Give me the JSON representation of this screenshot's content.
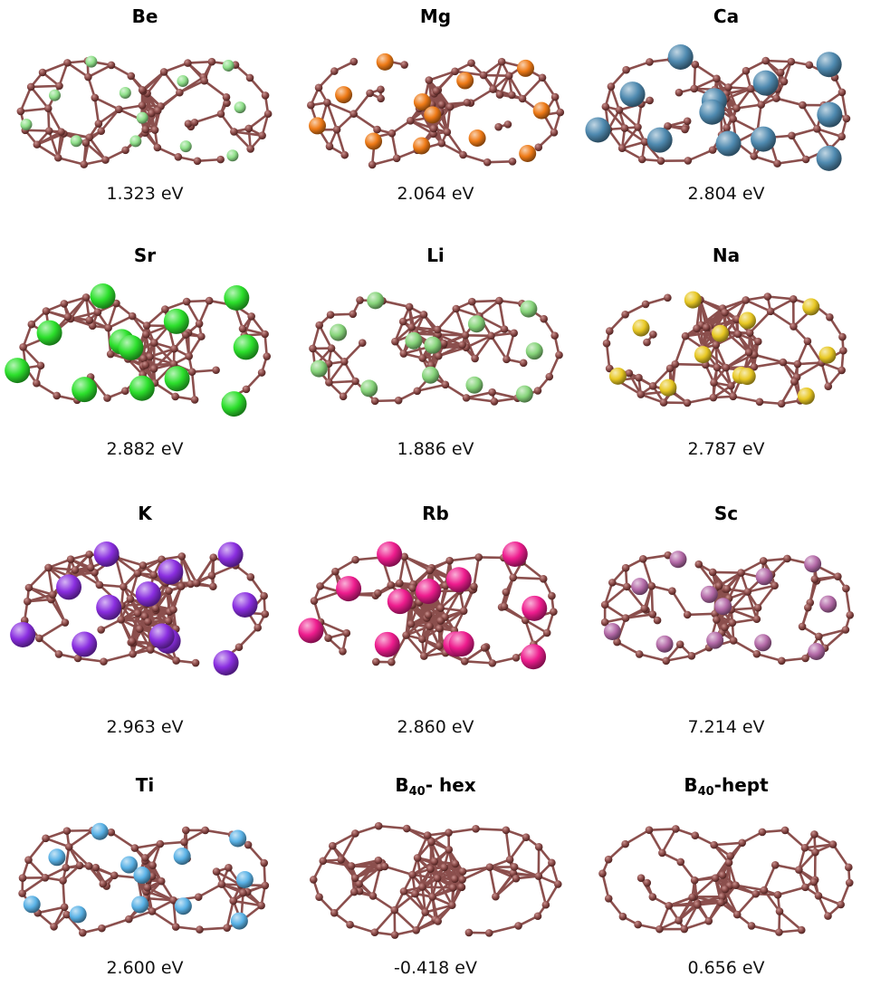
{
  "colors": {
    "boron_atom": "#8a4a48",
    "boron_atom_dark": "#4f2321",
    "boron_bond": "#8b4f4d"
  },
  "panels": [
    {
      "title": "Be",
      "energy": "1.323 eV",
      "dopant_color": "#8fe08a",
      "dopant_size": "small",
      "cage": "hept"
    },
    {
      "title": "Mg",
      "energy": "2.064 eV",
      "dopant_color": "#ee7a16",
      "dopant_size": "medium",
      "cage": "hept"
    },
    {
      "title": "Ca",
      "energy": "2.804 eV",
      "dopant_color": "#4f8ab0",
      "dopant_size": "large",
      "cage": "hept"
    },
    {
      "title": "Sr",
      "energy": "2.882 eV",
      "dopant_color": "#2ce02c",
      "dopant_size": "large",
      "cage": "hept"
    },
    {
      "title": "Li",
      "energy": "1.886 eV",
      "dopant_color": "#86d47a",
      "dopant_size": "medium",
      "cage": "hept"
    },
    {
      "title": "Na",
      "energy": "2.787 eV",
      "dopant_color": "#e8c823",
      "dopant_size": "medium",
      "cage": "hex"
    },
    {
      "title": "K",
      "energy": "2.963 eV",
      "dopant_color": "#8a2ee0",
      "dopant_size": "large",
      "cage": "hex"
    },
    {
      "title": "Rb",
      "energy": "2.860 eV",
      "dopant_color": "#ee1c8e",
      "dopant_size": "large",
      "cage": "hex"
    },
    {
      "title": "Sc",
      "energy": "7.214 eV",
      "dopant_color": "#b46aa8",
      "dopant_size": "medium",
      "cage": "hept"
    },
    {
      "title": "Ti",
      "energy": "2.600 eV",
      "dopant_color": "#5ab2e6",
      "dopant_size": "medium",
      "cage": "hept"
    },
    {
      "title_main": "B",
      "title_sub": "40",
      "title_rest": "- hex",
      "energy": "-0.418 eV",
      "dopant_color": "",
      "dopant_size": "none",
      "cage": "hex"
    },
    {
      "title_main": "B",
      "title_sub": "40",
      "title_rest": "-hept",
      "energy": "0.656 eV",
      "dopant_color": "",
      "dopant_size": "none",
      "cage": "hept"
    }
  ]
}
